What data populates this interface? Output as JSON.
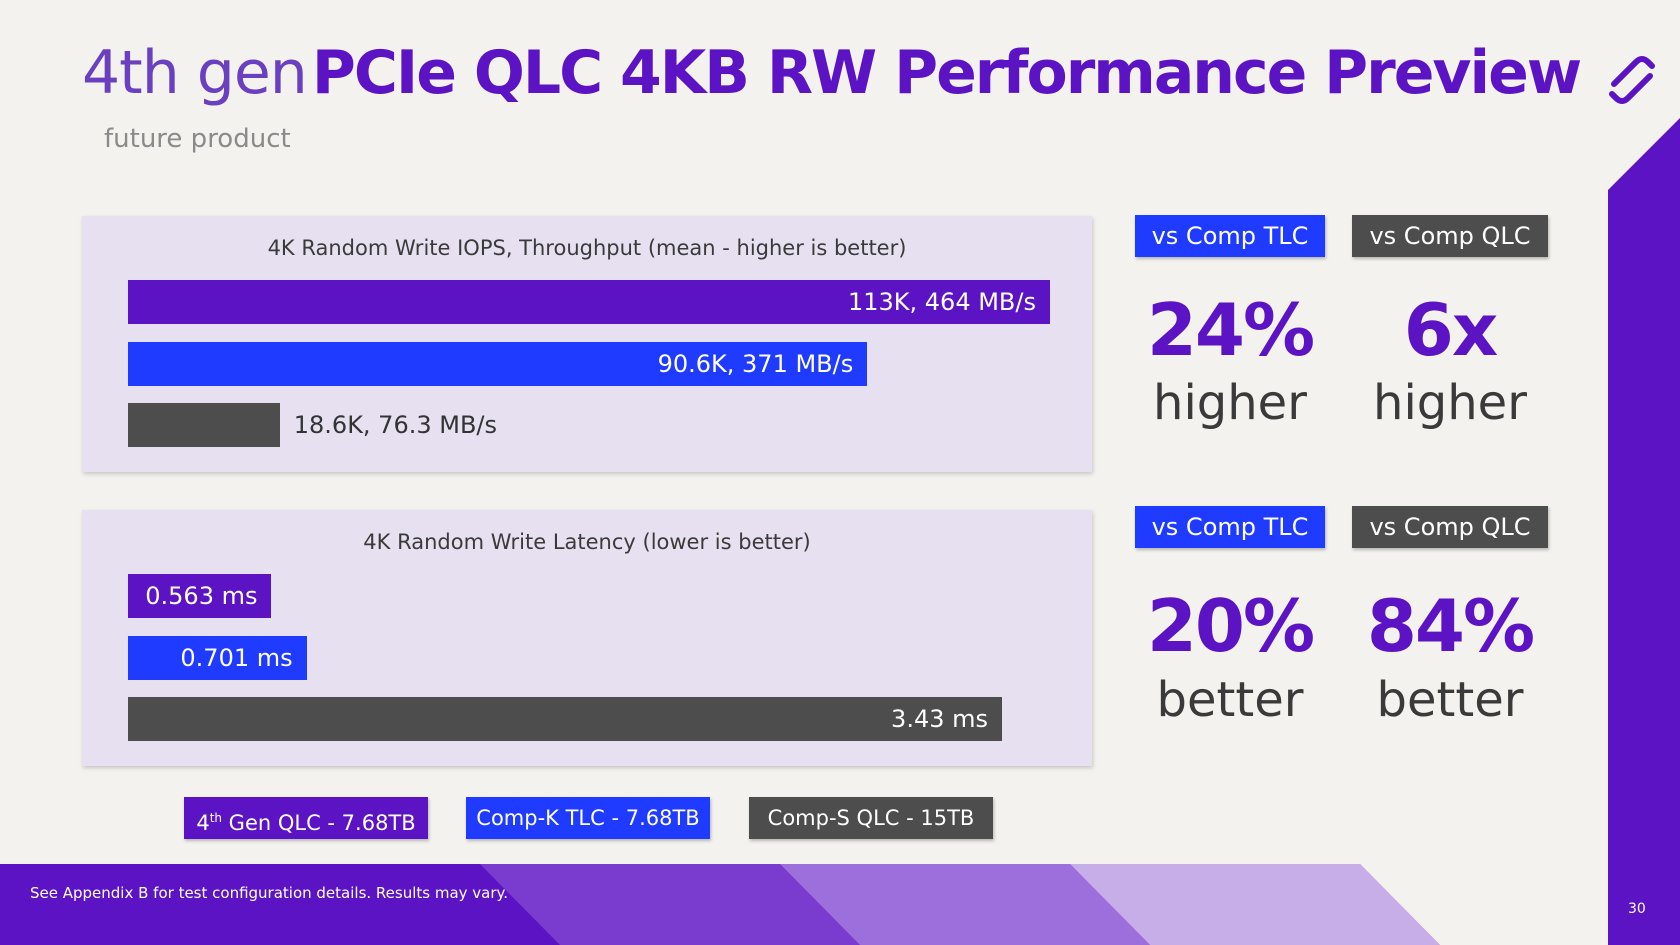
{
  "header": {
    "title_light": "4th gen",
    "title_bold": "PCIe QLC 4KB RW Performance Preview",
    "subtitle": "future product"
  },
  "colors": {
    "purple": "#5b13c4",
    "blue": "#1f3bff",
    "gray": "#4d4d4d",
    "panel_bg": "#e7e0f1"
  },
  "chart_data": [
    {
      "type": "bar",
      "orientation": "horizontal",
      "title": "4K Random Write IOPS, Throughput (mean - higher is better)",
      "categories": [
        "4th Gen QLC - 7.68TB",
        "Comp-K TLC - 7.68TB",
        "Comp-S QLC - 15TB"
      ],
      "values": [
        113,
        90.6,
        18.6
      ],
      "unit": "K IOPS",
      "throughput_mbps": [
        464,
        371,
        76.3
      ],
      "data_labels": [
        "113K, 464 MB/s",
        "90.6K, 371 MB/s",
        "18.6K, 76.3 MB/s"
      ],
      "colors": [
        "#5b13c4",
        "#1f3bff",
        "#4d4d4d"
      ]
    },
    {
      "type": "bar",
      "orientation": "horizontal",
      "title": "4K Random Write Latency (lower is better)",
      "categories": [
        "4th Gen QLC - 7.68TB",
        "Comp-K TLC - 7.68TB",
        "Comp-S QLC - 15TB"
      ],
      "values": [
        0.563,
        0.701,
        3.43
      ],
      "unit": "ms",
      "data_labels": [
        "0.563 ms",
        "0.701 ms",
        "3.43 ms"
      ],
      "colors": [
        "#5b13c4",
        "#1f3bff",
        "#4d4d4d"
      ]
    }
  ],
  "comparisons": {
    "iops": {
      "tlc": {
        "tag": "vs Comp TLC",
        "value": "24%",
        "word": "higher"
      },
      "qlc": {
        "tag": "vs Comp QLC",
        "value": "6x",
        "word": "higher"
      }
    },
    "latency": {
      "tlc": {
        "tag": "vs Comp TLC",
        "value": "20%",
        "word": "better"
      },
      "qlc": {
        "tag": "vs Comp QLC",
        "value": "84%",
        "word": "better"
      }
    }
  },
  "legend": {
    "qlc_base": "4",
    "qlc_sup": "th",
    "qlc_rest": " Gen QLC - 7.68TB",
    "tlc": "Comp-K TLC - 7.68TB",
    "comp_qlc": "Comp-S QLC - 15TB"
  },
  "footer": {
    "note": "See Appendix B for test configuration details. Results may vary.",
    "page": "30"
  }
}
